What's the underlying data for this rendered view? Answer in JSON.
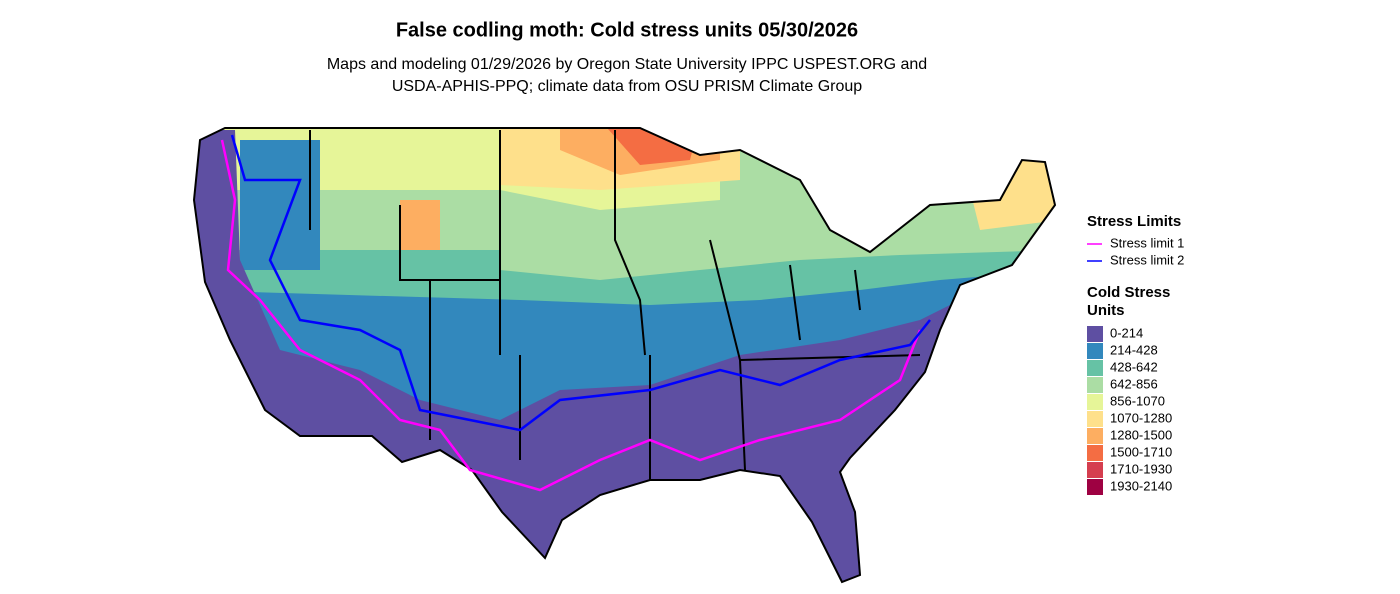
{
  "header": {
    "title": "False codling moth: Cold stress units 05/30/2026",
    "subtitle": [
      "Maps and modeling 01/29/2026 by Oregon State University IPPC USPEST.ORG and",
      "USDA-APHIS-PPQ; climate data from OSU PRISM Climate Group"
    ]
  },
  "legend": {
    "stress_limits": {
      "title": "Stress Limits",
      "items": [
        {
          "name": "Stress limit 1",
          "color": "#ff00ff"
        },
        {
          "name": "Stress limit 2",
          "color": "#0000ff"
        }
      ]
    },
    "cold_stress_units": {
      "title": [
        "Cold Stress",
        "Units"
      ],
      "items": [
        {
          "name": "0-214",
          "color": "#5e4fa2"
        },
        {
          "name": "214-428",
          "color": "#3288bd"
        },
        {
          "name": "428-642",
          "color": "#66c2a5"
        },
        {
          "name": "642-856",
          "color": "#abdda4"
        },
        {
          "name": "856-1070",
          "color": "#e6f598"
        },
        {
          "name": "1070-1280",
          "color": "#fee08b"
        },
        {
          "name": "1280-1500",
          "color": "#fdae61"
        },
        {
          "name": "1500-1710",
          "color": "#f46d43"
        },
        {
          "name": "1710-1930",
          "color": "#d53e4f"
        },
        {
          "name": "1930-2140",
          "color": "#9e0142"
        }
      ]
    }
  }
}
